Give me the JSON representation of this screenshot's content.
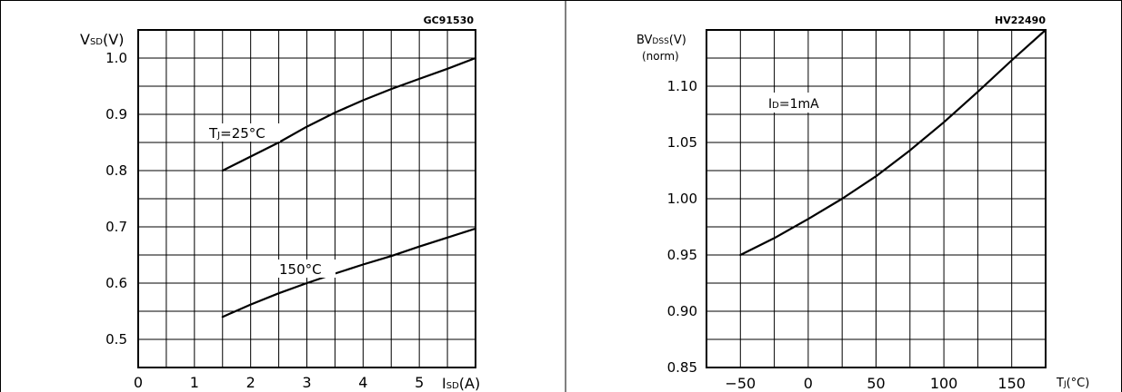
{
  "chart_data": [
    {
      "type": "line",
      "code": "GC91530",
      "ylabel": {
        "main": "V",
        "sub": "SD",
        "unit": "(V)"
      },
      "xlabel": {
        "main": "I",
        "sub": "SD",
        "unit": "(A)"
      },
      "xlim": [
        0,
        6
      ],
      "ylim": [
        0.45,
        1.05
      ],
      "xticks": [
        "0",
        "1",
        "2",
        "3",
        "4",
        "5"
      ],
      "yticks": [
        "1.0",
        "0.9",
        "0.8",
        "0.7",
        "0.6",
        "0.5"
      ],
      "series": [
        {
          "label": {
            "main": "T",
            "sub": "J",
            "rest": "=25°C"
          },
          "x": [
            1.5,
            2.0,
            2.5,
            3.0,
            3.5,
            4.0,
            4.5,
            5.0,
            5.5,
            6.0
          ],
          "y": [
            0.8,
            0.825,
            0.85,
            0.878,
            0.903,
            0.925,
            0.945,
            0.963,
            0.981,
            1.0
          ]
        },
        {
          "label": {
            "main": "",
            "sub": "",
            "rest": "150°C"
          },
          "x": [
            1.5,
            2.0,
            2.5,
            3.0,
            3.5,
            4.0,
            4.5,
            5.0,
            5.5,
            6.0
          ],
          "y": [
            0.54,
            0.562,
            0.582,
            0.6,
            0.617,
            0.633,
            0.648,
            0.665,
            0.681,
            0.697
          ]
        }
      ],
      "grid": true
    },
    {
      "type": "line",
      "code": "HV22490",
      "ylabel": {
        "main": "BV",
        "sub": "DSS",
        "unit": "(V)",
        "line2": "(norm)"
      },
      "xlabel": {
        "main": "T",
        "sub": "J",
        "unit": "(°C)"
      },
      "xlim": [
        -75,
        175
      ],
      "ylim": [
        0.85,
        1.15
      ],
      "xticks": [
        "−50",
        "0",
        "50",
        "100",
        "150"
      ],
      "yticks": [
        "1.10",
        "1.05",
        "1.00",
        "0.95",
        "0.90",
        "0.85"
      ],
      "annotation": {
        "main": "I",
        "sub": "D",
        "rest": "=1mA"
      },
      "series": [
        {
          "x": [
            -50,
            -25,
            0,
            25,
            50,
            75,
            100,
            125,
            150,
            175
          ],
          "y": [
            0.95,
            0.965,
            0.982,
            1.0,
            1.02,
            1.043,
            1.068,
            1.095,
            1.123,
            1.15
          ]
        }
      ],
      "grid": true
    }
  ]
}
